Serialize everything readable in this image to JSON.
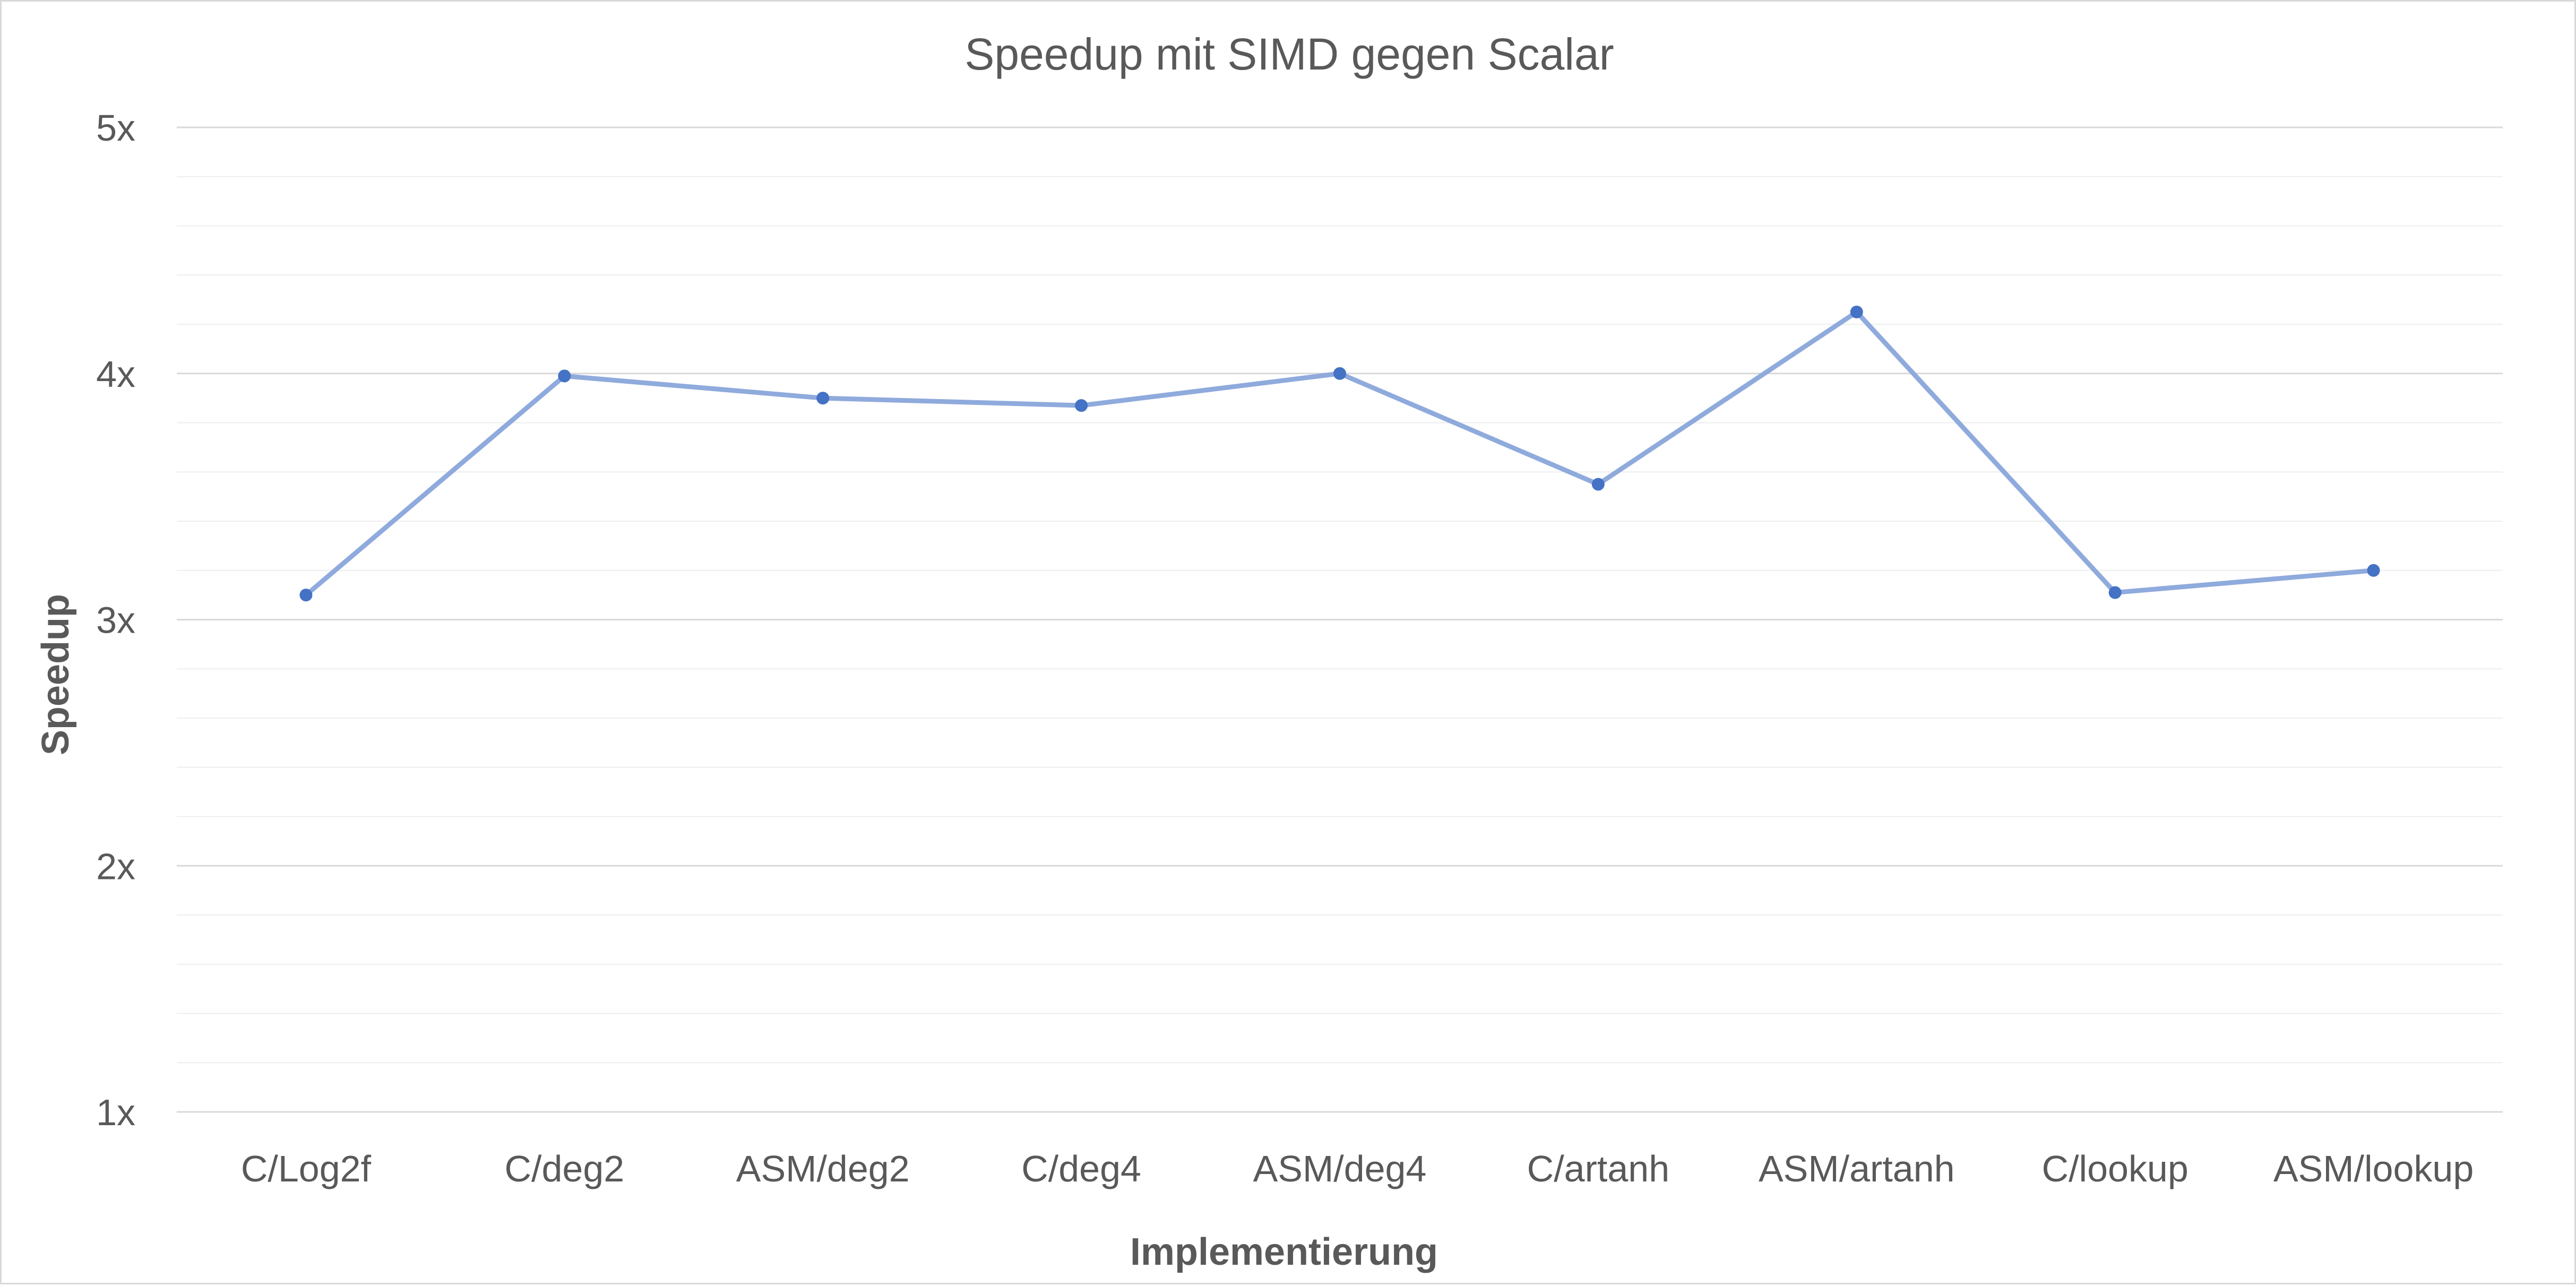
{
  "chart_data": {
    "type": "line",
    "title": "Speedup mit SIMD gegen Scalar",
    "xlabel": "Implementierung",
    "ylabel": "Speedup",
    "categories": [
      "C/Log2f",
      "C/deg2",
      "ASM/deg2",
      "C/deg4",
      "ASM/deg4",
      "C/artanh",
      "ASM/artanh",
      "C/lookup",
      "ASM/lookup"
    ],
    "series": [
      {
        "values": [
          3.1,
          3.99,
          3.9,
          3.87,
          4.0,
          3.55,
          4.25,
          3.11,
          3.2
        ],
        "color": "#8faadc",
        "marker_color": "#4472c4"
      }
    ],
    "ylim": [
      1,
      5
    ],
    "yticks": [
      1,
      2,
      3,
      4,
      5
    ],
    "ytick_labels": [
      "1x",
      "2x",
      "3x",
      "4x",
      "5x"
    ],
    "minor_gridlines": true,
    "legend": "none",
    "gridline_color": "#d9d9d9",
    "minor_gridline_color": "#eeeeee"
  }
}
